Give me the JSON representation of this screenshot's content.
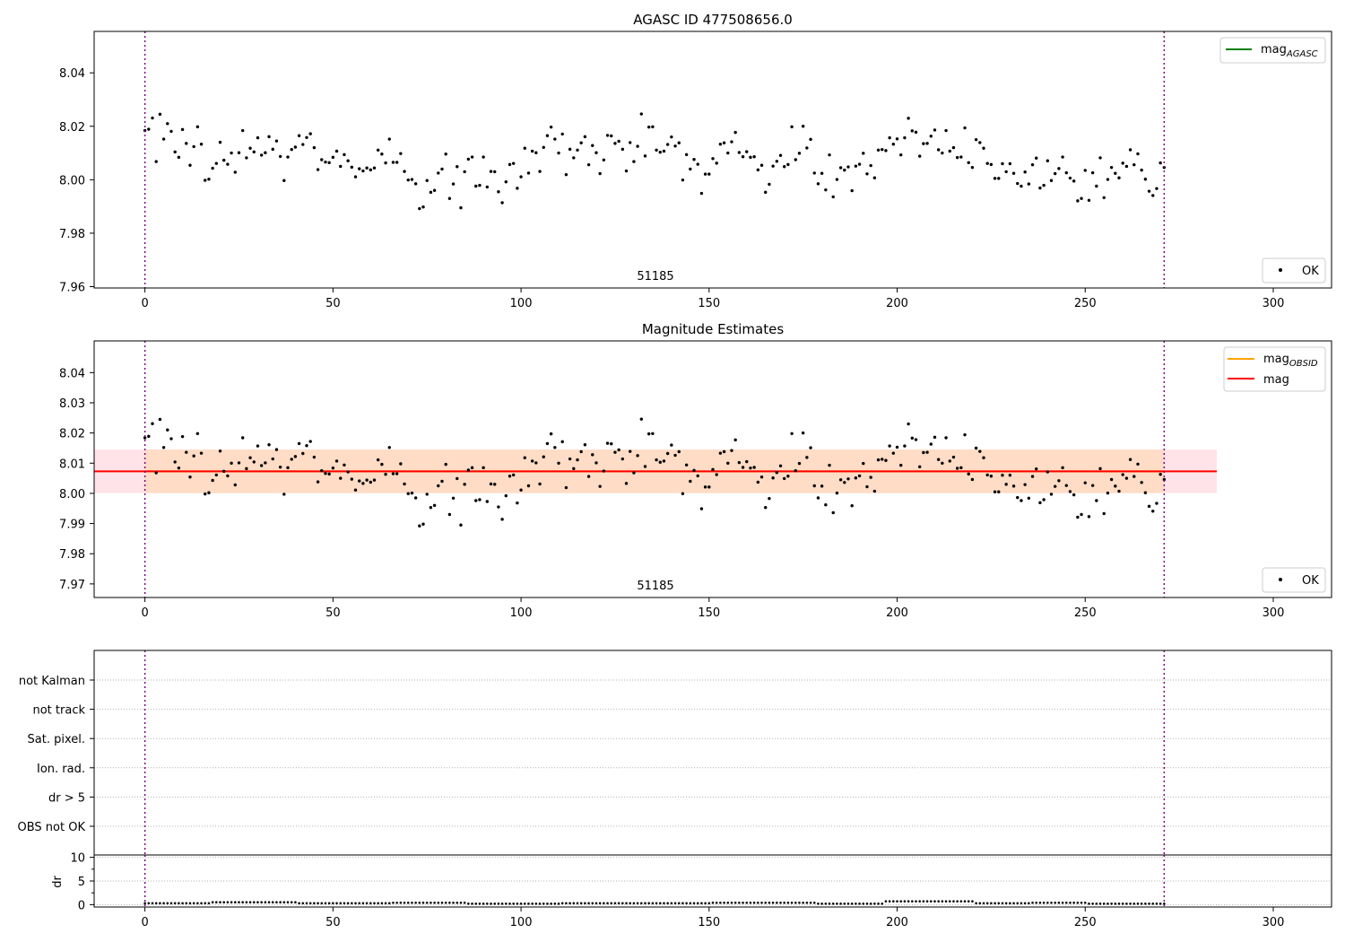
{
  "figure": {
    "top_title": "AGASC ID 477508656.0",
    "middle_title": "Magnitude Estimates",
    "obsid_label": "51185"
  },
  "chart_data": [
    {
      "type": "scatter",
      "title": "AGASC ID 477508656.0",
      "xlabel": "",
      "ylabel": "",
      "xlim": [
        -13.5,
        315.5
      ],
      "ylim": [
        7.9595,
        8.0555
      ],
      "xticks": [
        0,
        50,
        100,
        150,
        200,
        250,
        300
      ],
      "yticks": [
        7.96,
        7.98,
        8.0,
        8.02,
        8.04
      ],
      "ytick_labels": [
        "7.96",
        "7.98",
        "8.00",
        "8.02",
        "8.04"
      ],
      "vlines": [
        0,
        271
      ],
      "vline_color": "#800080",
      "annotation": "51185",
      "legend_upper": {
        "placement": "top-right",
        "entries": [
          {
            "label": "mag",
            "subscript": "AGASC",
            "color": "#008000",
            "marker": "line"
          }
        ]
      },
      "legend_lower": {
        "placement": "bottom-right",
        "entries": [
          {
            "label": "OK",
            "color": "#000000",
            "marker": "dot"
          }
        ]
      },
      "series": [
        {
          "name": "OK",
          "marker_color": "#000000",
          "x_start": 0,
          "x_step": 1,
          "values": [
            8.0184,
            8.0189,
            8.0231,
            8.0068,
            8.0245,
            8.0152,
            8.021,
            8.0181,
            8.0104,
            8.0084,
            8.0188,
            8.0136,
            8.0054,
            8.0124,
            8.0198,
            8.0133,
            7.9998,
            8.0002,
            8.0043,
            8.0061,
            8.014,
            8.0073,
            8.0058,
            8.01,
            8.0028,
            8.0101,
            8.0184,
            8.0082,
            8.0118,
            8.0104,
            8.0157,
            8.0092,
            8.0101,
            8.0161,
            8.0114,
            8.0145,
            8.0087,
            7.9997,
            8.0085,
            8.0113,
            8.0122,
            8.0165,
            8.0132,
            8.0158,
            8.0172,
            8.012,
            8.0038,
            8.0075,
            8.0066,
            8.0064,
            8.0084,
            8.0107,
            8.005,
            8.0094,
            8.0071,
            8.0047,
            8.0011,
            8.0041,
            8.0033,
            8.0044,
            8.0037,
            8.0044,
            8.0111,
            8.0096,
            8.0063,
            8.0152,
            8.0065,
            8.0065,
            8.0098,
            8.0031,
            7.9999,
            8.0001,
            7.9985,
            7.9892,
            7.9898,
            7.9997,
            7.9953,
            7.996,
            8.0025,
            8.004,
            8.0096,
            7.993,
            7.9984,
            8.0049,
            7.9895,
            8.003,
            8.0077,
            8.0085,
            7.9976,
            7.9979,
            8.0085,
            7.9973,
            8.0031,
            8.003,
            7.9955,
            7.9914,
            7.9992,
            8.0057,
            8.0061,
            7.9968,
            8.0011,
            8.0118,
            8.0025,
            8.0107,
            8.0101,
            8.0031,
            8.0121,
            8.0165,
            8.0197,
            8.0152,
            8.01,
            8.0171,
            8.0019,
            8.0114,
            8.0082,
            8.0111,
            8.0138,
            8.0161,
            8.0056,
            8.0128,
            8.0101,
            8.0023,
            8.0074,
            8.0166,
            8.0164,
            8.0136,
            8.0144,
            8.0114,
            8.0033,
            8.0139,
            8.0068,
            8.0125,
            8.0246,
            8.0089,
            8.0197,
            8.0198,
            8.0111,
            8.0103,
            8.0107,
            8.0132,
            8.016,
            8.0126,
            8.0138,
            7.9999,
            8.0094,
            8.004,
            8.0076,
            8.0058,
            7.9949,
            8.0021,
            8.0021,
            8.0079,
            8.0062,
            8.0133,
            8.0138,
            8.01,
            8.0142,
            8.0177,
            8.0102,
            8.0086,
            8.0105,
            8.0084,
            8.0086,
            8.0037,
            8.0054,
            7.9953,
            7.9983,
            8.0051,
            8.0069,
            8.0091,
            8.0049,
            8.0057,
            8.0198,
            8.0075,
            8.0099,
            8.02,
            8.0119,
            8.0151,
            8.0025,
            7.9985,
            8.0024,
            7.9962,
            8.0093,
            7.9936,
            8.0001,
            8.0045,
            8.0036,
            8.0048,
            7.9959,
            8.0051,
            8.0058,
            8.0099,
            8.0022,
            8.0053,
            8.0007,
            8.0111,
            8.0113,
            8.0109,
            8.0157,
            8.0133,
            8.0153,
            8.0093,
            8.0157,
            8.023,
            8.0183,
            8.0178,
            8.0088,
            8.0135,
            8.0136,
            8.0163,
            8.0186,
            8.0112,
            8.01,
            8.0184,
            8.0107,
            8.012,
            8.0083,
            8.0085,
            8.0194,
            8.0064,
            8.0046,
            8.015,
            8.0139,
            8.0118,
            8.0061,
            8.0057,
            8.0005,
            8.0005,
            8.006,
            8.003,
            8.006,
            8.0024,
            7.9986,
            7.9976,
            8.0029,
            7.9984,
            8.0056,
            8.0081,
            7.9969,
            7.9979,
            8.0071,
            7.9997,
            8.0023,
            8.0042,
            8.0085,
            8.0026,
            8.0006,
            7.9995,
            7.9921,
            7.993,
            8.0035,
            7.9923,
            8.0026,
            7.9976,
            8.0082,
            7.9933,
            8.0001,
            8.0046,
            8.0024,
            8.0007,
            8.0062,
            8.005,
            8.0112,
            8.0056,
            8.0097,
            8.0036,
            8.0002,
            7.9957,
            7.9941,
            7.9967,
            8.0063,
            8.0046
          ]
        }
      ]
    },
    {
      "type": "scatter",
      "title": "Magnitude Estimates",
      "xlabel": "",
      "ylabel": "",
      "xlim": [
        -13.5,
        315.5
      ],
      "ylim": [
        7.9655,
        8.0505
      ],
      "xticks": [
        0,
        50,
        100,
        150,
        200,
        250,
        300
      ],
      "yticks": [
        7.97,
        7.98,
        7.99,
        8.0,
        8.01,
        8.02,
        8.03,
        8.04
      ],
      "ytick_labels": [
        "7.97",
        "7.98",
        "7.99",
        "8.00",
        "8.01",
        "8.02",
        "8.03",
        "8.04"
      ],
      "vlines": [
        0,
        271
      ],
      "vline_color": "#800080",
      "annotation": "51185",
      "mag_line": {
        "name": "mag",
        "value": 8.0073,
        "x_range": [
          -13.5,
          285
        ],
        "color": "#ff0000"
      },
      "mag_obsid_line": {
        "name": "mag",
        "subscript": "OBSID",
        "value": 8.0073,
        "x_range": [
          0,
          271
        ],
        "color": "#ffa500"
      },
      "band_mag": {
        "low": 8.0001,
        "high": 8.0145,
        "x_range": [
          -13.5,
          285
        ],
        "color": "#ffc0cb"
      },
      "band_obsid": {
        "low": 8.0001,
        "high": 8.0145,
        "x_range": [
          0,
          271
        ],
        "color": "#ffdab9"
      },
      "legend_upper": {
        "placement": "top-right",
        "entries": [
          {
            "label": "mag",
            "subscript": "OBSID",
            "color": "#ffa500",
            "marker": "line"
          },
          {
            "label": "mag",
            "color": "#ff0000",
            "marker": "line"
          }
        ]
      },
      "legend_lower": {
        "placement": "bottom-right",
        "entries": [
          {
            "label": "OK",
            "color": "#000000",
            "marker": "dot"
          }
        ]
      },
      "series": [
        {
          "name": "OK",
          "marker_color": "#000000",
          "same_values_as_top_panel": true
        }
      ]
    },
    {
      "type": "scatter",
      "title": "",
      "flags_ylabels": [
        "not Kalman",
        "not track",
        "Sat. pixel.",
        "Ion. rad.",
        "dr > 5",
        "OBS not OK"
      ],
      "xlim": [
        -13.5,
        315.5
      ],
      "grid": "horizontal dotted",
      "vlines": [
        0,
        271
      ],
      "vline_color": "#800080"
    },
    {
      "type": "scatter",
      "ylabel": "dr",
      "xlim": [
        -13.5,
        315.5
      ],
      "ylim": [
        -0.5,
        10.5
      ],
      "xticks": [
        0,
        50,
        100,
        150,
        200,
        250,
        300
      ],
      "yticks": [
        0,
        5,
        10
      ],
      "ytick_labels": [
        "0",
        "5",
        "10"
      ],
      "vlines": [
        0,
        271
      ],
      "vline_color": "#800080",
      "series": [
        {
          "name": "dr",
          "marker_color": "#000000",
          "segments": [
            {
              "x_from": 0,
              "x_to": 17,
              "value": 0.3
            },
            {
              "x_from": 18,
              "x_to": 40,
              "value": 0.5
            },
            {
              "x_from": 41,
              "x_to": 65,
              "value": 0.3
            },
            {
              "x_from": 66,
              "x_to": 85,
              "value": 0.4
            },
            {
              "x_from": 86,
              "x_to": 110,
              "value": 0.2
            },
            {
              "x_from": 111,
              "x_to": 150,
              "value": 0.3
            },
            {
              "x_from": 151,
              "x_to": 178,
              "value": 0.4
            },
            {
              "x_from": 179,
              "x_to": 196,
              "value": 0.2
            },
            {
              "x_from": 197,
              "x_to": 220,
              "value": 0.7
            },
            {
              "x_from": 221,
              "x_to": 235,
              "value": 0.3
            },
            {
              "x_from": 236,
              "x_to": 250,
              "value": 0.4
            },
            {
              "x_from": 251,
              "x_to": 271,
              "value": 0.2
            }
          ]
        }
      ]
    }
  ]
}
